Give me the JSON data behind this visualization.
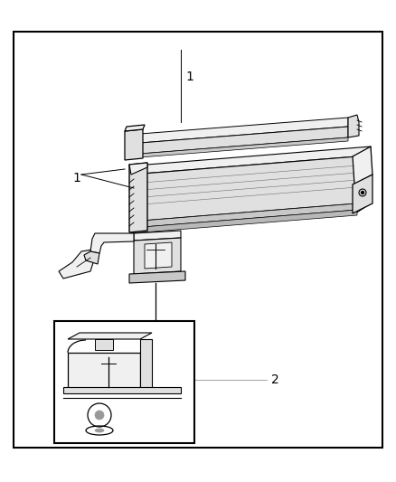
{
  "bg_color": "#ffffff",
  "border_color": "#000000",
  "line_color": "#000000",
  "fill_light": "#f0f0f0",
  "fill_mid": "#e0e0e0",
  "fill_dark": "#c8c8c8",
  "label_1_top": "1",
  "label_1_mid": "1",
  "label_2": "2",
  "fig_width": 4.38,
  "fig_height": 5.33,
  "dpi": 100,
  "border": [
    15,
    35,
    408,
    460
  ]
}
